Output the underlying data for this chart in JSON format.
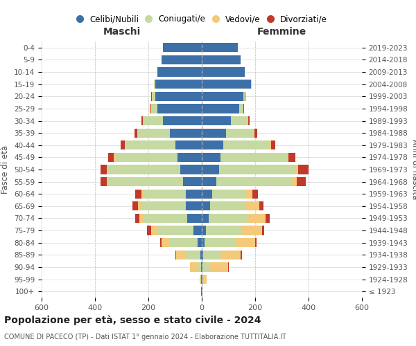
{
  "age_groups": [
    "100+",
    "95-99",
    "90-94",
    "85-89",
    "80-84",
    "75-79",
    "70-74",
    "65-69",
    "60-64",
    "55-59",
    "50-54",
    "45-49",
    "40-44",
    "35-39",
    "30-34",
    "25-29",
    "20-24",
    "15-19",
    "10-14",
    "5-9",
    "0-4"
  ],
  "birth_years": [
    "≤ 1923",
    "1924-1928",
    "1929-1933",
    "1934-1938",
    "1939-1943",
    "1944-1948",
    "1949-1953",
    "1954-1958",
    "1959-1963",
    "1964-1968",
    "1969-1973",
    "1974-1978",
    "1979-1983",
    "1984-1988",
    "1989-1993",
    "1994-1998",
    "1999-2003",
    "2004-2008",
    "2009-2013",
    "2014-2018",
    "2019-2023"
  ],
  "colors": {
    "celibe": "#3d6fa8",
    "coniugato": "#c5d9a0",
    "vedovo": "#f5c97a",
    "divorziato": "#c0392b"
  },
  "maschi": {
    "celibe": [
      2,
      2,
      3,
      5,
      15,
      30,
      55,
      60,
      60,
      70,
      80,
      90,
      100,
      120,
      145,
      165,
      175,
      175,
      165,
      150,
      145
    ],
    "coniugato": [
      0,
      2,
      15,
      55,
      105,
      140,
      165,
      165,
      155,
      280,
      270,
      235,
      185,
      120,
      75,
      25,
      10,
      5,
      0,
      0,
      0
    ],
    "vedovo": [
      0,
      5,
      25,
      35,
      30,
      20,
      15,
      15,
      10,
      5,
      5,
      5,
      3,
      2,
      2,
      2,
      2,
      0,
      0,
      0,
      0
    ],
    "divorziato": [
      0,
      0,
      2,
      5,
      5,
      15,
      15,
      20,
      25,
      25,
      25,
      20,
      15,
      10,
      5,
      2,
      2,
      0,
      0,
      0,
      0
    ]
  },
  "femmine": {
    "nubile": [
      2,
      2,
      3,
      5,
      10,
      15,
      25,
      30,
      40,
      55,
      65,
      70,
      80,
      90,
      110,
      140,
      155,
      185,
      160,
      145,
      135
    ],
    "coniugata": [
      0,
      5,
      25,
      65,
      115,
      135,
      150,
      130,
      120,
      280,
      285,
      250,
      175,
      105,
      60,
      15,
      5,
      2,
      0,
      0,
      0
    ],
    "vedova": [
      0,
      10,
      70,
      75,
      75,
      75,
      65,
      55,
      30,
      20,
      10,
      5,
      5,
      3,
      3,
      2,
      2,
      0,
      0,
      0,
      0
    ],
    "divorziata": [
      0,
      0,
      2,
      5,
      5,
      10,
      15,
      15,
      20,
      35,
      40,
      25,
      15,
      10,
      5,
      2,
      2,
      0,
      0,
      0,
      0
    ]
  },
  "title": "Popolazione per età, sesso e stato civile - 2024",
  "subtitle": "COMUNE DI PACECO (TP) - Dati ISTAT 1° gennaio 2024 - Elaborazione TUTTITALIA.IT",
  "xlabel_left": "Maschi",
  "xlabel_right": "Femmine",
  "ylabel_left": "Fasce di età",
  "ylabel_right": "Anni di nascita",
  "xlim": 600,
  "background_color": "#ffffff",
  "legend_labels": [
    "Celibi/Nubili",
    "Coniugati/e",
    "Vedovi/e",
    "Divorziati/e"
  ]
}
